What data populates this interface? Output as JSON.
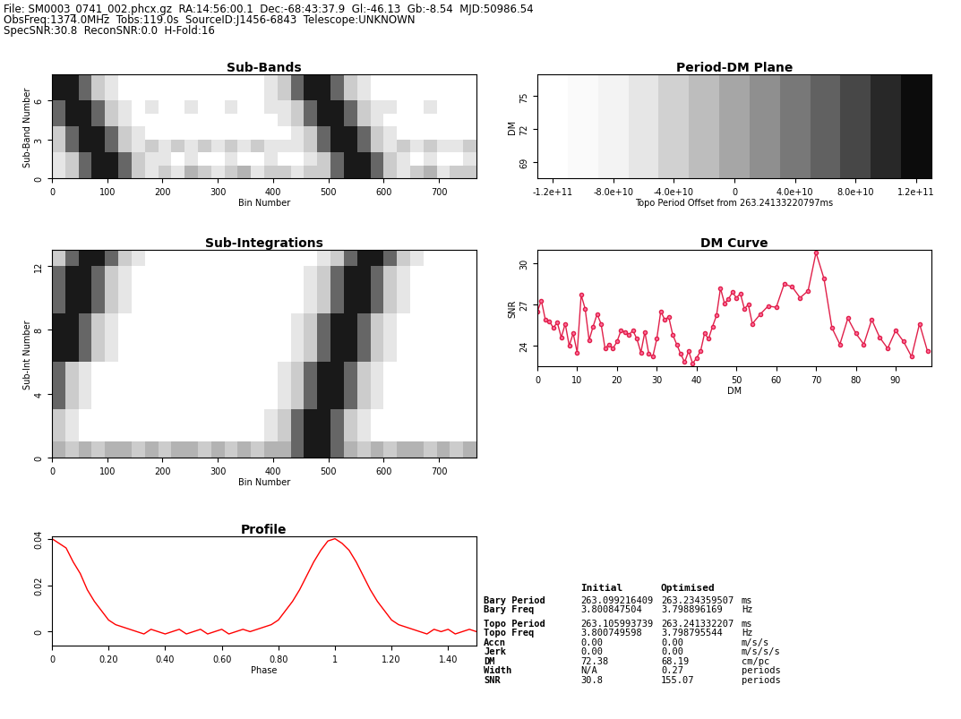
{
  "header": [
    "File: SM0003_0741_002.phcx.gz  RA:14:56:00.1  Dec:-68:43:37.9  Gl:-46.13  Gb:-8.54  MJD:50986.54",
    "ObsFreq:1374.0MHz  Tobs:119.0s  SourceID:J1456-6843  Telescope:UNKNOWN",
    "SpecSNR:30.8  ReconSNR:0.0  H-Fold:16"
  ],
  "chart_data": [
    {
      "type": "heatmap",
      "title": "Sub-Bands",
      "xlabel": "Bin Number",
      "ylabel": "Sub-Band Number",
      "xlim": [
        0,
        768
      ],
      "ylim": [
        0,
        8
      ],
      "xticks": [
        0,
        100,
        200,
        300,
        400,
        500,
        600,
        700
      ],
      "yticks": [
        0,
        3,
        6
      ],
      "zlim": [
        0,
        1
      ],
      "x_edges": [
        0,
        24,
        48,
        72,
        96,
        120,
        144,
        168,
        192,
        216,
        240,
        264,
        288,
        312,
        336,
        360,
        384,
        408,
        432,
        456,
        480,
        504,
        528,
        552,
        576,
        600,
        624,
        648,
        672,
        696,
        720,
        744,
        768
      ],
      "y_edges": [
        0,
        1,
        2,
        3,
        4,
        5,
        6,
        7,
        8
      ],
      "cells": [
        [
          0.1,
          0.2,
          0.6,
          0.9,
          0.9,
          0.6,
          0.2,
          0.1,
          0.2,
          0.1,
          0.3,
          0.2,
          0.1,
          0.2,
          0.3,
          0.1,
          0.2,
          0.2,
          0.1,
          0.2,
          0.2,
          0.6,
          0.9,
          0.9,
          0.6,
          0.2,
          0.1,
          0.2,
          0.3,
          0.1,
          0.2,
          0.2
        ],
        [
          0.1,
          0.2,
          0.6,
          0.9,
          0.9,
          0.6,
          0.2,
          0.1,
          0.1,
          0,
          0.1,
          0,
          0,
          0.1,
          0,
          0,
          0.1,
          0,
          0,
          0.1,
          0.2,
          0.6,
          0.9,
          0.9,
          0.6,
          0.2,
          0.1,
          0,
          0.1,
          0,
          0,
          0.1
        ],
        [
          0.2,
          0.6,
          0.9,
          0.9,
          0.6,
          0.2,
          0.1,
          0.2,
          0.1,
          0.2,
          0.1,
          0.2,
          0.1,
          0.2,
          0.1,
          0.2,
          0.1,
          0.1,
          0.1,
          0.2,
          0.6,
          0.9,
          0.9,
          0.6,
          0.2,
          0.1,
          0.2,
          0.1,
          0.2,
          0.1,
          0.1,
          0.2
        ],
        [
          0.2,
          0.6,
          0.9,
          0.9,
          0.6,
          0.2,
          0.1,
          0,
          0,
          0,
          0,
          0,
          0,
          0,
          0,
          0,
          0,
          0,
          0.1,
          0.2,
          0.6,
          0.9,
          0.9,
          0.6,
          0.2,
          0.1,
          0,
          0,
          0,
          0,
          0,
          0
        ],
        [
          0.6,
          0.9,
          0.9,
          0.6,
          0.2,
          0.1,
          0,
          0,
          0,
          0,
          0,
          0,
          0,
          0,
          0,
          0,
          0,
          0.1,
          0.2,
          0.6,
          0.9,
          0.9,
          0.6,
          0.2,
          0.1,
          0,
          0,
          0,
          0,
          0,
          0,
          0
        ],
        [
          0.6,
          0.9,
          0.9,
          0.6,
          0.2,
          0.1,
          0,
          0.1,
          0,
          0,
          0.1,
          0,
          0,
          0.1,
          0,
          0,
          0.1,
          0.1,
          0.2,
          0.6,
          0.9,
          0.9,
          0.6,
          0.2,
          0.1,
          0.1,
          0,
          0,
          0.1,
          0,
          0,
          0
        ],
        [
          0.9,
          0.9,
          0.6,
          0.2,
          0.1,
          0,
          0,
          0,
          0,
          0,
          0,
          0,
          0,
          0,
          0,
          0,
          0.1,
          0.2,
          0.6,
          0.9,
          0.9,
          0.6,
          0.2,
          0.1,
          0,
          0,
          0,
          0,
          0,
          0,
          0,
          0
        ],
        [
          0.9,
          0.9,
          0.6,
          0.2,
          0.1,
          0,
          0,
          0,
          0,
          0,
          0,
          0,
          0,
          0,
          0,
          0,
          0.1,
          0.2,
          0.6,
          0.9,
          0.9,
          0.6,
          0.2,
          0.1,
          0,
          0,
          0,
          0,
          0,
          0,
          0,
          0
        ]
      ]
    },
    {
      "type": "heatmap",
      "title": "Period-DM Plane",
      "xlabel": "Topo Period Offset from 263.24133220797ms",
      "ylabel": "DM",
      "xlim": [
        -130000000000,
        130000000000
      ],
      "ylim": [
        67.5,
        77
      ],
      "xticks": [
        {
          "value": -120000000000,
          "label": "-1.2e+11"
        },
        {
          "value": -80000000000,
          "label": "-8.0e+10"
        },
        {
          "value": -40000000000,
          "label": "-4.0e+10"
        },
        0,
        {
          "value": 40000000000,
          "label": "4.0e+10"
        },
        {
          "value": 80000000000,
          "label": "8.0e+10"
        },
        {
          "value": 120000000000,
          "label": "1.2e+11"
        }
      ],
      "yticks": [
        69,
        72,
        75
      ],
      "zlim": [
        0,
        1
      ],
      "x_edges": [
        -130000000000,
        -110000000000,
        -90000000000,
        -70000000000,
        -50000000000,
        -30000000000,
        -10000000000,
        10000000000,
        30000000000,
        50000000000,
        70000000000,
        90000000000,
        110000000000,
        130000000000
      ],
      "y_edges": [
        67.5,
        77
      ],
      "cells": [
        [
          0,
          0.02,
          0.05,
          0.1,
          0.18,
          0.26,
          0.35,
          0.44,
          0.53,
          0.62,
          0.72,
          0.84,
          0.95
        ]
      ]
    },
    {
      "type": "heatmap",
      "title": "Sub-Integrations",
      "xlabel": "Bin Number",
      "ylabel": "Sub-Int Number",
      "xlim": [
        0,
        768
      ],
      "ylim": [
        0,
        13
      ],
      "xticks": [
        0,
        100,
        200,
        300,
        400,
        500,
        600,
        700
      ],
      "yticks": [
        0,
        4,
        8,
        12
      ],
      "zlim": [
        0,
        1
      ],
      "x_edges": [
        0,
        24,
        48,
        72,
        96,
        120,
        144,
        168,
        192,
        216,
        240,
        264,
        288,
        312,
        336,
        360,
        384,
        408,
        432,
        456,
        480,
        504,
        528,
        552,
        576,
        600,
        624,
        648,
        672,
        696,
        720,
        744,
        768
      ],
      "y_edges": [
        0,
        1,
        2,
        3,
        4,
        5,
        6,
        7,
        8,
        9,
        10,
        11,
        12,
        13
      ],
      "cells": [
        [
          0.3,
          0.2,
          0.3,
          0.2,
          0.3,
          0.3,
          0.2,
          0.3,
          0.2,
          0.3,
          0.3,
          0.2,
          0.3,
          0.2,
          0.3,
          0.2,
          0.3,
          0.3,
          0.6,
          0.9,
          0.9,
          0.6,
          0.3,
          0.2,
          0.3,
          0.2,
          0.3,
          0.3,
          0.2,
          0.3,
          0.2,
          0.3
        ],
        [
          0.2,
          0.1,
          0,
          0,
          0,
          0,
          0,
          0,
          0,
          0,
          0,
          0,
          0,
          0,
          0,
          0,
          0.1,
          0.2,
          0.6,
          0.9,
          0.9,
          0.6,
          0.2,
          0.1,
          0,
          0,
          0,
          0,
          0,
          0,
          0,
          0
        ],
        [
          0.2,
          0.1,
          0,
          0,
          0,
          0,
          0,
          0,
          0,
          0,
          0,
          0,
          0,
          0,
          0,
          0,
          0.1,
          0.2,
          0.6,
          0.9,
          0.9,
          0.6,
          0.2,
          0.1,
          0,
          0,
          0,
          0,
          0,
          0,
          0,
          0
        ],
        [
          0.6,
          0.2,
          0.1,
          0,
          0,
          0,
          0,
          0,
          0,
          0,
          0,
          0,
          0,
          0,
          0,
          0,
          0,
          0.1,
          0.2,
          0.6,
          0.9,
          0.9,
          0.6,
          0.2,
          0.1,
          0,
          0,
          0,
          0,
          0,
          0,
          0
        ],
        [
          0.6,
          0.2,
          0.1,
          0,
          0,
          0,
          0,
          0,
          0,
          0,
          0,
          0,
          0,
          0,
          0,
          0,
          0,
          0.1,
          0.2,
          0.6,
          0.9,
          0.9,
          0.6,
          0.2,
          0.1,
          0,
          0,
          0,
          0,
          0,
          0,
          0
        ],
        [
          0.6,
          0.2,
          0.1,
          0,
          0,
          0,
          0,
          0,
          0,
          0,
          0,
          0,
          0,
          0,
          0,
          0,
          0,
          0.1,
          0.2,
          0.6,
          0.9,
          0.9,
          0.6,
          0.2,
          0.1,
          0,
          0,
          0,
          0,
          0,
          0,
          0
        ],
        [
          0.9,
          0.9,
          0.6,
          0.2,
          0.1,
          0,
          0,
          0,
          0,
          0,
          0,
          0,
          0,
          0,
          0,
          0,
          0,
          0,
          0.1,
          0.2,
          0.6,
          0.9,
          0.9,
          0.6,
          0.2,
          0.1,
          0,
          0,
          0,
          0,
          0,
          0
        ],
        [
          0.9,
          0.9,
          0.6,
          0.2,
          0.1,
          0,
          0,
          0,
          0,
          0,
          0,
          0,
          0,
          0,
          0,
          0,
          0,
          0,
          0.1,
          0.2,
          0.6,
          0.9,
          0.9,
          0.6,
          0.2,
          0.1,
          0,
          0,
          0,
          0,
          0,
          0
        ],
        [
          0.9,
          0.9,
          0.6,
          0.2,
          0.1,
          0,
          0,
          0,
          0,
          0,
          0,
          0,
          0,
          0,
          0,
          0,
          0,
          0,
          0.1,
          0.2,
          0.6,
          0.9,
          0.9,
          0.6,
          0.2,
          0.1,
          0,
          0,
          0,
          0,
          0,
          0
        ],
        [
          0.6,
          0.9,
          0.9,
          0.6,
          0.2,
          0.1,
          0,
          0,
          0,
          0,
          0,
          0,
          0,
          0,
          0,
          0,
          0,
          0,
          0,
          0.1,
          0.2,
          0.6,
          0.9,
          0.9,
          0.6,
          0.2,
          0.1,
          0,
          0,
          0,
          0,
          0
        ],
        [
          0.6,
          0.9,
          0.9,
          0.6,
          0.2,
          0.1,
          0,
          0,
          0,
          0,
          0,
          0,
          0,
          0,
          0,
          0,
          0,
          0,
          0,
          0.1,
          0.2,
          0.6,
          0.9,
          0.9,
          0.6,
          0.2,
          0.1,
          0,
          0,
          0,
          0,
          0
        ],
        [
          0.6,
          0.9,
          0.9,
          0.6,
          0.2,
          0.1,
          0,
          0,
          0,
          0,
          0,
          0,
          0,
          0,
          0,
          0,
          0,
          0,
          0,
          0.1,
          0.2,
          0.6,
          0.9,
          0.9,
          0.6,
          0.2,
          0.1,
          0,
          0,
          0,
          0,
          0
        ],
        [
          0.2,
          0.6,
          0.9,
          0.9,
          0.6,
          0.2,
          0.1,
          0,
          0,
          0,
          0,
          0,
          0,
          0,
          0,
          0,
          0,
          0,
          0,
          0,
          0.1,
          0.2,
          0.6,
          0.9,
          0.9,
          0.6,
          0.2,
          0.1,
          0,
          0,
          0,
          0
        ]
      ]
    },
    {
      "type": "line",
      "title": "DM Curve",
      "xlabel": "DM",
      "ylabel": "SNR",
      "xlim": [
        0,
        99
      ],
      "ylim": [
        22.5,
        31
      ],
      "xticks": [
        0,
        10,
        20,
        30,
        40,
        50,
        60,
        70,
        80,
        90
      ],
      "yticks": [
        24,
        27,
        30
      ],
      "color": "#e0204a",
      "marker": "o",
      "x": [
        0,
        1,
        2,
        3,
        4,
        5,
        6,
        7,
        8,
        9,
        10,
        11,
        12,
        13,
        14,
        15,
        16,
        17,
        18,
        19,
        20,
        21,
        22,
        23,
        24,
        25,
        26,
        27,
        28,
        29,
        30,
        31,
        32,
        33,
        34,
        35,
        36,
        37,
        38,
        39,
        40,
        41,
        42,
        43,
        44,
        45,
        46,
        47,
        48,
        49,
        50,
        51,
        52,
        53,
        54,
        56,
        58,
        60,
        62,
        64,
        66,
        68,
        70,
        72,
        74,
        76,
        78,
        80,
        82,
        84,
        86,
        88,
        90,
        92,
        94,
        96,
        98
      ],
      "values": [
        26.5,
        27.3,
        25.9,
        25.8,
        25.3,
        25.7,
        24.6,
        25.6,
        24.0,
        24.9,
        23.5,
        27.7,
        26.7,
        24.4,
        25.4,
        26.3,
        25.6,
        23.8,
        24.1,
        23.8,
        24.3,
        25.1,
        25.0,
        24.8,
        25.1,
        24.5,
        23.5,
        25.0,
        23.4,
        23.2,
        24.5,
        26.5,
        25.9,
        26.1,
        24.8,
        24.1,
        23.4,
        22.8,
        23.6,
        22.7,
        23.1,
        23.6,
        24.9,
        24.5,
        25.4,
        26.2,
        28.2,
        27.1,
        27.4,
        27.9,
        27.5,
        27.8,
        26.7,
        27.0,
        25.6,
        26.3,
        26.9,
        26.8,
        28.5,
        28.3,
        27.5,
        28.0,
        30.8,
        28.9,
        25.3,
        24.1,
        26.0,
        24.9,
        24.1,
        25.9,
        24.6,
        23.8,
        25.1,
        24.3,
        23.2,
        25.6,
        23.6
      ]
    },
    {
      "type": "line",
      "title": "Profile",
      "xlabel": "Phase",
      "xlim": [
        0,
        1.5
      ],
      "ylim": [
        -0.006,
        0.041
      ],
      "xticks": [
        0,
        {
          "value": 0.2,
          "label": "0.20"
        },
        {
          "value": 0.4,
          "label": "0.40"
        },
        {
          "value": 0.6,
          "label": "0.60"
        },
        {
          "value": 0.8,
          "label": "0.80"
        },
        {
          "value": 1,
          "label": "1"
        },
        {
          "value": 1.2,
          "label": "1.20"
        },
        {
          "value": 1.4,
          "label": "1.40"
        }
      ],
      "yticks": [
        0,
        0.02,
        0.04
      ],
      "color": "#ff0000",
      "x": [
        0,
        0.025,
        0.05,
        0.075,
        0.1,
        0.125,
        0.15,
        0.175,
        0.2,
        0.225,
        0.25,
        0.275,
        0.3,
        0.325,
        0.35,
        0.375,
        0.4,
        0.425,
        0.45,
        0.475,
        0.5,
        0.525,
        0.55,
        0.575,
        0.6,
        0.625,
        0.65,
        0.675,
        0.7,
        0.725,
        0.75,
        0.775,
        0.8,
        0.825,
        0.85,
        0.875,
        0.9,
        0.925,
        0.95,
        0.975,
        1.0,
        1.025,
        1.05,
        1.075,
        1.1,
        1.125,
        1.15,
        1.175,
        1.2,
        1.225,
        1.25,
        1.275,
        1.3,
        1.325,
        1.35,
        1.375,
        1.4,
        1.425,
        1.45,
        1.475,
        1.5
      ],
      "values": [
        0.04,
        0.038,
        0.036,
        0.03,
        0.025,
        0.018,
        0.013,
        0.009,
        0.005,
        0.003,
        0.002,
        0.001,
        0,
        -0.001,
        0.001,
        0,
        -0.001,
        0,
        0.001,
        -0.001,
        0,
        0.001,
        -0.001,
        0,
        0.001,
        -0.001,
        0,
        0.001,
        0,
        0.001,
        0.002,
        0.003,
        0.005,
        0.009,
        0.013,
        0.018,
        0.024,
        0.03,
        0.035,
        0.039,
        0.04,
        0.038,
        0.035,
        0.03,
        0.024,
        0.018,
        0.013,
        0.009,
        0.005,
        0.003,
        0.002,
        0.001,
        0,
        -0.001,
        0.001,
        0,
        0.001,
        -0.001,
        0,
        0.001,
        0
      ]
    }
  ],
  "table": {
    "columns": [
      "Initial",
      "Optimised"
    ],
    "rows": [
      [
        "Bary Period",
        "263.099216409",
        "263.234359507",
        "ms"
      ],
      [
        "Bary Freq",
        "3.800847504",
        "3.798896169",
        "Hz"
      ],
      [
        "Topo Period",
        "263.105993739",
        "263.241332207",
        "ms"
      ],
      [
        "Topo Freq",
        "3.800749598",
        "3.798795544",
        "Hz"
      ],
      [
        "Accn",
        "0.00",
        "0.00",
        "m/s/s"
      ],
      [
        "Jerk",
        "0.00",
        "0.00",
        "m/s/s/s"
      ],
      [
        "DM",
        "72.38",
        "68.19",
        "cm/pc"
      ],
      [
        "Width",
        "N/A",
        "0.27",
        "periods"
      ],
      [
        "SNR",
        "30.8",
        "155.07",
        "periods"
      ]
    ]
  }
}
